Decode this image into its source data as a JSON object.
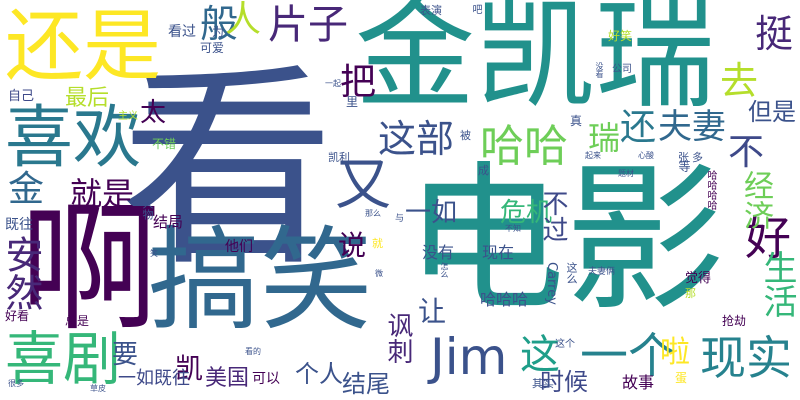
{
  "words": [
    {
      "text": "看",
      "color": "#3b528b"
    },
    {
      "text": "电影",
      "color": "#21918c"
    },
    {
      "text": "金凯瑞",
      "color": "#21918c"
    },
    {
      "text": "啊",
      "color": "#440154"
    },
    {
      "text": "搞笑",
      "color": "#31688e"
    },
    {
      "text": "还是",
      "color": "#fde725"
    },
    {
      "text": "喜欢",
      "color": "#2a788e"
    },
    {
      "text": "喜剧",
      "color": "#35b779"
    },
    {
      "text": "Jim",
      "color": "#3b528b"
    },
    {
      "text": "一个",
      "color": "#26828e"
    },
    {
      "text": "现实",
      "color": "#26828e"
    },
    {
      "text": "好",
      "color": "#440154"
    },
    {
      "text": "又",
      "color": "#3b528b"
    },
    {
      "text": "这部",
      "color": "#3b528b"
    },
    {
      "text": "哈哈",
      "color": "#6ece58"
    },
    {
      "text": "安然",
      "color": "#482878"
    },
    {
      "text": "片子",
      "color": "#482878"
    },
    {
      "text": "般",
      "color": "#31688e"
    },
    {
      "text": "人",
      "color": "#b5de2b"
    },
    {
      "text": "去",
      "color": "#b5de2b"
    },
    {
      "text": "挺",
      "color": "#482878"
    },
    {
      "text": "把",
      "color": "#440154"
    },
    {
      "text": "不",
      "color": "#3e4989"
    },
    {
      "text": "还",
      "color": "#2a788e"
    },
    {
      "text": "夫妻",
      "color": "#31688e"
    },
    {
      "text": "瑞",
      "color": "#6ece58"
    },
    {
      "text": "但是",
      "color": "#3b528b"
    },
    {
      "text": "金",
      "color": "#31688e"
    },
    {
      "text": "就是",
      "color": "#440154"
    },
    {
      "text": "经济",
      "color": "#6ece58"
    },
    {
      "text": "生活",
      "color": "#35b779"
    },
    {
      "text": "一如",
      "color": "#3b528b"
    },
    {
      "text": "危机",
      "color": "#35b779"
    },
    {
      "text": "不过",
      "color": "#3e4989"
    },
    {
      "text": "说",
      "color": "#440154"
    },
    {
      "text": "讽刺",
      "color": "#482878"
    },
    {
      "text": "让",
      "color": "#3b528b"
    },
    {
      "text": "这",
      "color": "#1f9e89"
    },
    {
      "text": "啦",
      "color": "#fde725"
    },
    {
      "text": "时候",
      "color": "#3e4989"
    },
    {
      "text": "结尾",
      "color": "#3b528b"
    },
    {
      "text": "个人",
      "color": "#3b528b"
    },
    {
      "text": "美国",
      "color": "#482878"
    },
    {
      "text": "要",
      "color": "#3b528b"
    },
    {
      "text": "凯",
      "color": "#440154"
    },
    {
      "text": "最后",
      "color": "#b5de2b"
    },
    {
      "text": "太",
      "color": "#440154"
    },
    {
      "text": "没有",
      "color": "#3b528b"
    },
    {
      "text": "现在",
      "color": "#3b528b"
    },
    {
      "text": "哈哈哈",
      "color": "#3b528b"
    },
    {
      "text": "故事",
      "color": "#440154"
    },
    {
      "text": "可以",
      "color": "#440154"
    },
    {
      "text": "一如既往",
      "color": "#3e4989"
    },
    {
      "text": "结局",
      "color": "#440154"
    },
    {
      "text": "他们",
      "color": "#440154"
    },
    {
      "text": "既往",
      "color": "#3b528b"
    },
    {
      "text": "看过",
      "color": "#3b528b"
    },
    {
      "text": "可爱",
      "color": "#3b528b"
    },
    {
      "text": "为",
      "color": "#3b528b"
    },
    {
      "text": "表演",
      "color": "#3b528b"
    },
    {
      "text": "吧",
      "color": "#3b528b"
    },
    {
      "text": "好笑",
      "color": "#b5de2b"
    },
    {
      "text": "公司",
      "color": "#3b528b"
    },
    {
      "text": "自己",
      "color": "#3e4989"
    },
    {
      "text": "主义",
      "color": "#b5de2b"
    },
    {
      "text": "不错",
      "color": "#6ece58"
    },
    {
      "text": "凯利",
      "color": "#3b528b"
    },
    {
      "text": "被",
      "color": "#3b528b"
    },
    {
      "text": "真",
      "color": "#3b528b"
    },
    {
      "text": "成",
      "color": "#3b528b"
    },
    {
      "text": "等",
      "color": "#3b528b"
    },
    {
      "text": "张",
      "color": "#3b528b"
    },
    {
      "text": "多",
      "color": "#3b528b"
    },
    {
      "text": "起来",
      "color": "#3b528b"
    },
    {
      "text": "心酸",
      "color": "#3b528b"
    },
    {
      "text": "题材",
      "color": "#3b528b"
    },
    {
      "text": "哈哈哈哈",
      "color": "#440154"
    },
    {
      "text": "人物",
      "color": "#3b528b"
    },
    {
      "text": "那么",
      "color": "#3b528b"
    },
    {
      "text": "与",
      "color": "#3b528b"
    },
    {
      "text": "就",
      "color": "#fde725"
    },
    {
      "text": "怎么",
      "color": "#3b528b"
    },
    {
      "text": "Carrey",
      "color": "#3b528b"
    },
    {
      "text": "这么",
      "color": "#3b528b"
    },
    {
      "text": "夫妻俩",
      "color": "#3b528b"
    },
    {
      "text": "那",
      "color": "#b5de2b"
    },
    {
      "text": "觉得",
      "color": "#440154"
    },
    {
      "text": "抢劫",
      "color": "#440154"
    },
    {
      "text": "这个",
      "color": "#3b528b"
    },
    {
      "text": "蛋",
      "color": "#fde725"
    },
    {
      "text": "好看",
      "color": "#440154"
    },
    {
      "text": "总是",
      "color": "#440154"
    },
    {
      "text": "看的",
      "color": "#3b528b"
    },
    {
      "text": "草皮",
      "color": "#3b528b"
    },
    {
      "text": "其实",
      "color": "#3b528b"
    },
    {
      "text": "里",
      "color": "#3b528b"
    },
    {
      "text": "一起",
      "color": "#3b528b"
    },
    {
      "text": "没看",
      "color": "#3b528b"
    },
    {
      "text": "很多",
      "color": "#3b528b"
    },
    {
      "text": "笑",
      "color": "#3b528b"
    },
    {
      "text": "微",
      "color": "#3b528b"
    },
    {
      "text": "不知",
      "color": "#3b528b"
    }
  ]
}
